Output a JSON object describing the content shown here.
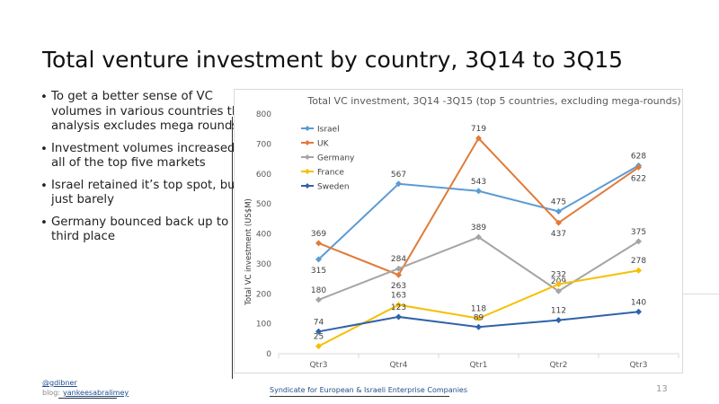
{
  "slide": {
    "title": "Total venture investment by country, 3Q14 to 3Q15",
    "bullets": [
      "To get a better sense of VC volumes in various countries this analysis excludes mega rounds",
      "Investment volumes increased in all of the top five markets",
      "Israel retained it’s top spot, but just barely",
      "Germany bounced back up to third place"
    ],
    "footer": {
      "handle": "@gdibner",
      "blog_label": "blog:",
      "blog": "yankeesabralimey",
      "org": "Syndicate for European & Israeli Enterprise Companies",
      "page": "13"
    }
  },
  "chart_data": {
    "type": "line",
    "title": "Total VC investment, 3Q14 -3Q15 (top 5 countries, excluding mega-rounds)",
    "xlabel": "",
    "ylabel": "Total VC investment (US$M)",
    "categories": [
      "Qtr3",
      "Qtr4",
      "Qtr1",
      "Qtr2",
      "Qtr3"
    ],
    "ylim": [
      0,
      800
    ],
    "yticks": [
      "0",
      "100",
      "200",
      "300",
      "400",
      "500",
      "600",
      "700",
      "800"
    ],
    "grid": false,
    "legend": "top-left",
    "series": [
      {
        "name": "Israel",
        "color": "#5b9bd5",
        "values": [
          315,
          567,
          543,
          475,
          628
        ],
        "labels": [
          "315",
          "567",
          "543",
          "475",
          "628"
        ]
      },
      {
        "name": "UK",
        "color": "#e07b39",
        "values": [
          369,
          263,
          719,
          437,
          622
        ],
        "labels": [
          "369",
          "263",
          "719",
          "437",
          "622"
        ]
      },
      {
        "name": "Germany",
        "color": "#a5a5a5",
        "values": [
          180,
          284,
          389,
          209,
          375
        ],
        "labels": [
          "180",
          "284",
          "389",
          "209",
          "375"
        ]
      },
      {
        "name": "France",
        "color": "#f5c000",
        "values": [
          25,
          163,
          118,
          232,
          278
        ],
        "labels": [
          "25",
          "163",
          "118",
          "232",
          "278"
        ]
      },
      {
        "name": "Sweden",
        "color": "#2f63a8",
        "values": [
          74,
          123,
          89,
          112,
          140
        ],
        "labels": [
          "74",
          "123",
          "89",
          "112",
          "140"
        ]
      }
    ]
  }
}
